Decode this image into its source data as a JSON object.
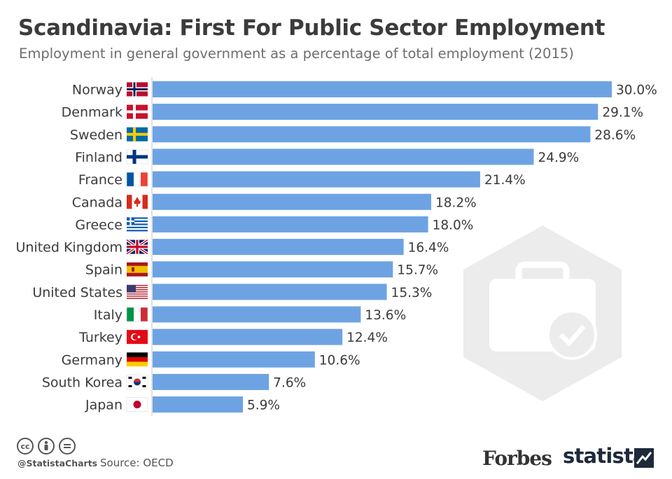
{
  "header": {
    "title": "Scandinavia: First For Public Sector Employment",
    "subtitle": "Employment in general government as a percentage of total employment (2015)"
  },
  "footer": {
    "handle": "@StatistaCharts",
    "source": "Source: OECD",
    "brand_forbes": "Forbes",
    "brand_statista": "statista",
    "cc_icons": [
      "cc-icon",
      "by-icon",
      "equals-icon"
    ]
  },
  "colors": {
    "bar": "#6ea3e3",
    "text": "#333333",
    "watermark": "#ececec"
  },
  "chart_data": {
    "type": "bar",
    "orientation": "horizontal",
    "title": "Scandinavia: First For Public Sector Employment",
    "subtitle": "Employment in general government as a percentage of total employment (2015)",
    "categories": [
      "Norway",
      "Denmark",
      "Sweden",
      "Finland",
      "France",
      "Canada",
      "Greece",
      "United Kingdom",
      "Spain",
      "United States",
      "Italy",
      "Turkey",
      "Germany",
      "South Korea",
      "Japan"
    ],
    "values": [
      30.0,
      29.1,
      28.6,
      24.9,
      21.4,
      18.2,
      18.0,
      16.4,
      15.7,
      15.3,
      13.6,
      12.4,
      10.6,
      7.6,
      5.9
    ],
    "value_labels": [
      "30.0%",
      "29.1%",
      "28.6%",
      "24.9%",
      "21.4%",
      "18.2%",
      "18.0%",
      "16.4%",
      "15.7%",
      "15.3%",
      "13.6%",
      "12.4%",
      "10.6%",
      "7.6%",
      "5.9%"
    ],
    "flags": [
      "norway-flag-icon",
      "denmark-flag-icon",
      "sweden-flag-icon",
      "finland-flag-icon",
      "france-flag-icon",
      "canada-flag-icon",
      "greece-flag-icon",
      "uk-flag-icon",
      "spain-flag-icon",
      "usa-flag-icon",
      "italy-flag-icon",
      "turkey-flag-icon",
      "germany-flag-icon",
      "south-korea-flag-icon",
      "japan-flag-icon"
    ],
    "xlim": [
      0,
      30
    ],
    "grid": false,
    "legend": "none"
  }
}
